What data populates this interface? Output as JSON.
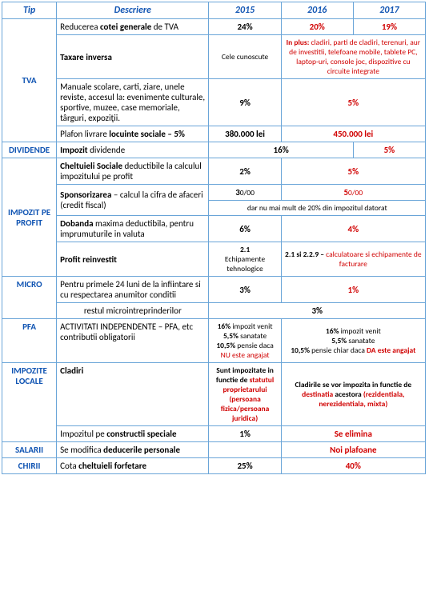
{
  "headers": {
    "tip": "Tip",
    "desc": "Descriere",
    "y2015": "2015",
    "y2016": "2016",
    "y2017": "2017"
  },
  "tva": {
    "label": "TVA",
    "r1": {
      "desc_a": "Reducerea ",
      "desc_b": "cotei generale",
      "desc_c": " de TVA",
      "v2015": "24%",
      "v2016": "20%",
      "v2017": "19%"
    },
    "r2": {
      "desc": "Taxare inversa",
      "v2015": "Cele cunoscute",
      "v16_a": "In plus:",
      "v16_b": " cladiri, parti de cladiri, terenuri, aur de investitii, telefoane mobile, tablete PC, laptop-uri, console joc, dispozitive cu circuite integrate"
    },
    "r3": {
      "desc": "Manuale scolare, carti, ziare, unele reviste, accesul la: evenimente culturale, sportive, muzee, case memoriale, târguri, expoziţii.",
      "v2015": "9%",
      "v16": "5%"
    },
    "r4": {
      "desc_a": "Plafon livrare ",
      "desc_b": "locuinte sociale – 5%",
      "v2015": "380.000 lei",
      "v16": "450.000 lei"
    }
  },
  "div": {
    "label": "DIVIDENDE",
    "desc_a": "Impozit",
    "desc_b": " dividende",
    "v1516": "16%",
    "v17": "5%"
  },
  "profit": {
    "label": "IMPOZIT PE PROFIT",
    "r1": {
      "desc_a": "Cheltuieli Sociale",
      "desc_b": " deductibile la calculul impozitului pe profit",
      "v2015": "2%",
      "v16": "5%"
    },
    "r2": {
      "desc_a": "Sponsorizarea",
      "desc_b": " – calcul la cifra de afaceri (credit fiscal)",
      "v2015_a": "3",
      "v2015_b": "0/00",
      "v16_a": "5",
      "v16_b": "0/00",
      "note": "dar nu mai mult de 20% din impozitul datorat"
    },
    "r3": {
      "desc_a": "Dobanda",
      "desc_b": " maxima deductibila, pentru imprumuturile in valuta",
      "v2015": "6%",
      "v16": "4%"
    },
    "r4": {
      "desc": "Profit reinvestit",
      "v2015_a": "2.1",
      "v2015_b": "Echipamente tehnologice",
      "v16_a": "2.1 si 2.2.9 – ",
      "v16_b": "calculatoare si echipamente de facturare"
    }
  },
  "micro": {
    "label": "MICRO",
    "r1": {
      "desc": "Pentru primele 24 luni de la infiintare si cu respectarea anumitor conditii",
      "v2015": "3%",
      "v16": "1%"
    },
    "r2": {
      "desc": "restul microintreprinderilor",
      "v": "3%"
    }
  },
  "pfa": {
    "label": "PFA",
    "desc": "ACTIVITATI INDEPENDENTE – PFA, etc contributii obligatorii",
    "v2015": {
      "a": "16% ",
      "b": "impozit venit",
      "c": "5,5% ",
      "d": "sanatate",
      "e": "10,5% ",
      "f": "pensie daca ",
      "g": "NU este angajat"
    },
    "v16": {
      "a": "16% ",
      "b": "impozit venit",
      "c": "5,5% ",
      "d": "sanatate",
      "e": "10,5% ",
      "f": "pensie chiar daca ",
      "g": "DA este angajat"
    }
  },
  "locale": {
    "label": "IMPOZITE LOCALE",
    "r1": {
      "desc": "Cladiri",
      "v2015_a": "Sunt impozitate in functie de ",
      "v2015_b": "statutul proprietarului (persoana fizica/persoana juridica)",
      "v16_a": "Cladirile se vor impozita in functie de ",
      "v16_b": "destinatia",
      "v16_c": " acestora ",
      "v16_d": "(rezidentiala, nerezidentiala, mixta)"
    },
    "r2": {
      "desc_a": "Impozitul pe ",
      "desc_b": "constructii speciale",
      "v2015": "1%",
      "v16": "Se elimina"
    }
  },
  "salarii": {
    "label": "SALARII",
    "desc_a": "Se modifica ",
    "desc_b": "deducerile personale",
    "v16": "Noi plafoane"
  },
  "chirii": {
    "label": "CHIRII",
    "desc_a": "Cota ",
    "desc_b": "cheltuieli forfetare",
    "v2015": "25%",
    "v16": "40%"
  }
}
